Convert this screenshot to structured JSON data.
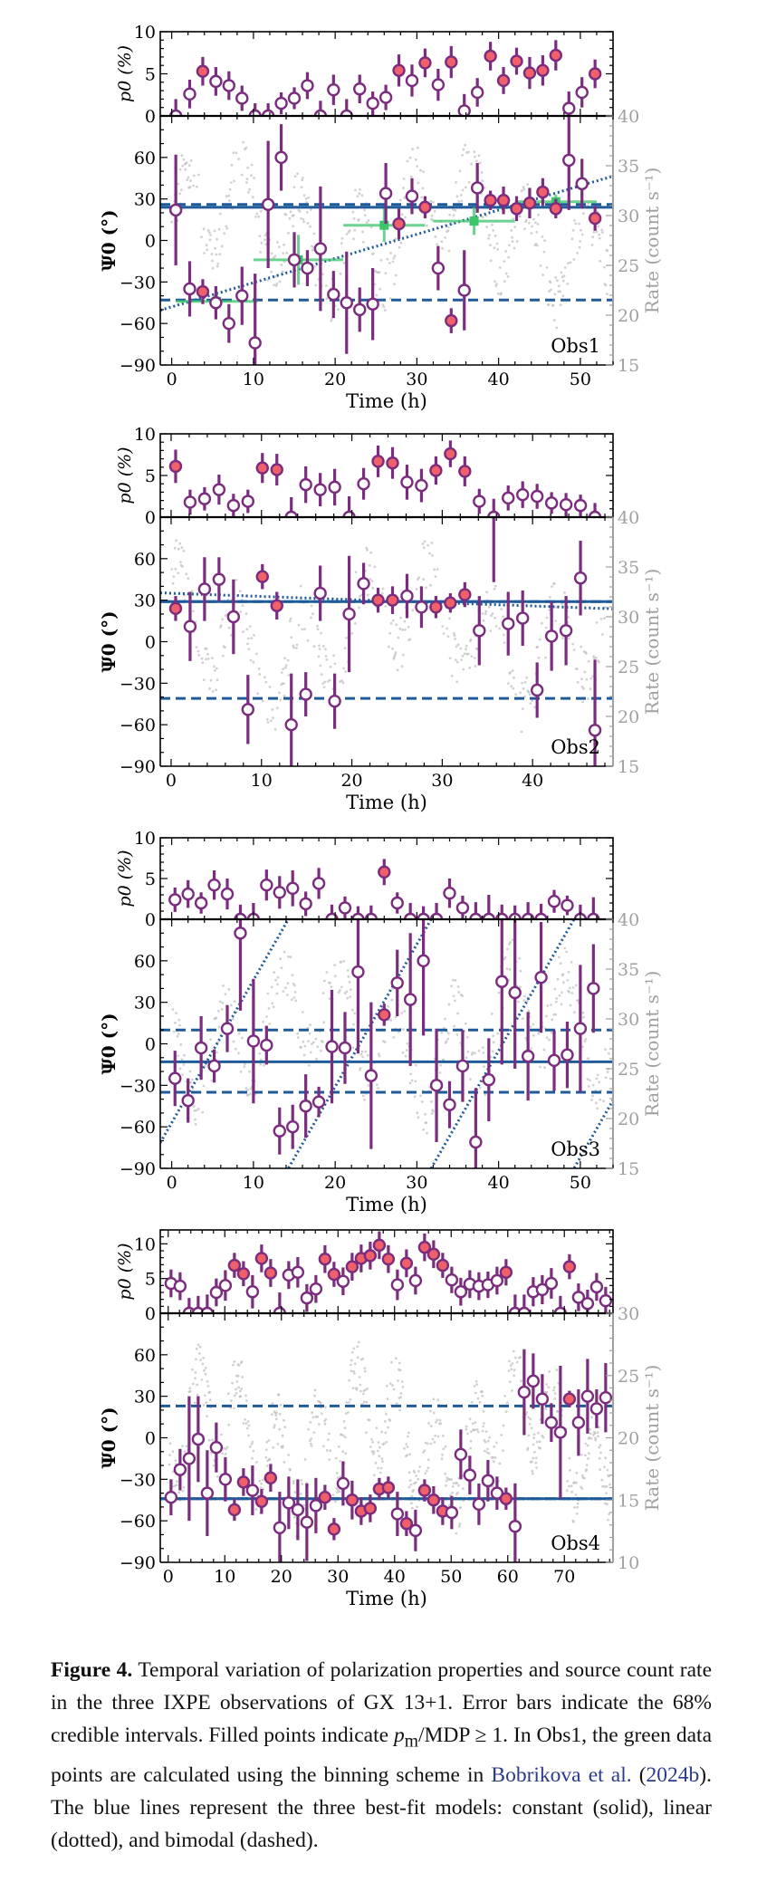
{
  "figure": {
    "label": "Figure 4.",
    "caption_parts": [
      "Temporal variation of polarization properties and source count rate in the three IXPE observations of GX 13+1.  Error bars indicate the 68% credible intervals.  Filled points indicate ",
      "p",
      "m",
      "/MDP ≥ 1.  In Obs1, the green data points are calculated using the binning scheme in ",
      "Bobrikova et al.",
      " (",
      "2024b",
      "). The blue lines represent the three best-fit models: constant (solid), linear (dotted), and bimodal (dashed)."
    ]
  },
  "colors": {
    "errorbar": "#7b2c7e",
    "filled_marker": "#f0606a",
    "open_marker_fill": "#ffffff",
    "model_line": "#1f5b99",
    "binned_green": "#3cc46a",
    "rate_points": "#bdbdbd",
    "right_axis": "#a0a0a0"
  },
  "chart_data": [
    {
      "type": "scatter",
      "panel": "Obs1",
      "xlabel": "Time (h)",
      "p_ylabel": "p0 (%)",
      "psi_ylabel": "Ψ0 (°)",
      "rate_ylabel": "Rate (count s⁻¹)",
      "xlim": [
        -1.4,
        54
      ],
      "xticks": [
        0,
        10,
        20,
        30,
        40,
        50
      ],
      "p_ylim": [
        0,
        10
      ],
      "p_yticks": [
        0,
        5,
        10
      ],
      "psi_ylim": [
        -90,
        90
      ],
      "psi_yticks": [
        -90,
        -60,
        -30,
        0,
        30,
        60
      ],
      "rate_ylim": [
        15,
        40
      ],
      "rate_yticks": [
        15,
        20,
        25,
        30,
        35,
        40
      ],
      "t": [
        0.5,
        2.2,
        3.8,
        5.4,
        7.0,
        8.6,
        10.2,
        11.8,
        13.4,
        15.0,
        16.6,
        18.2,
        19.8,
        21.4,
        23.0,
        24.6,
        26.2,
        27.8,
        29.4,
        31.0,
        32.6,
        34.2,
        35.8,
        37.4,
        39.0,
        40.6,
        42.2,
        43.8,
        45.4,
        47.0,
        48.6,
        50.2,
        51.8
      ],
      "p": [
        0,
        2.6,
        5.3,
        4.1,
        3.6,
        2.1,
        0,
        0,
        1.5,
        2.1,
        3.6,
        0,
        3.1,
        0,
        3.2,
        1.5,
        2.2,
        5.4,
        4.2,
        6.3,
        3.7,
        6.4,
        0.6,
        2.8,
        7.1,
        4.2,
        6.5,
        5.1,
        5.4,
        7.2,
        0.9,
        2.8,
        5.0
      ],
      "p_err": [
        2.0,
        1.7,
        1.7,
        1.7,
        1.7,
        1.5,
        1.5,
        1.5,
        1.3,
        1.3,
        1.6,
        1.8,
        1.8,
        2.0,
        1.7,
        1.4,
        1.5,
        1.9,
        1.9,
        1.7,
        1.9,
        1.9,
        2.0,
        1.7,
        1.7,
        1.6,
        1.6,
        1.9,
        1.8,
        1.8,
        2.0,
        1.8,
        1.7
      ],
      "psi": [
        22,
        -35,
        -37,
        -45,
        -60,
        -40,
        -74,
        26,
        60,
        -14,
        -20,
        -6,
        -39,
        -45,
        -50,
        -46,
        34,
        12,
        32,
        24,
        -20,
        -58,
        -36,
        38,
        29,
        29,
        23,
        27,
        35,
        23,
        58,
        41,
        16
      ],
      "psi_err": [
        40,
        20,
        9,
        12,
        14,
        21,
        50,
        46,
        24,
        20,
        13,
        45,
        17,
        37,
        16,
        26,
        22,
        11,
        13,
        8,
        16,
        9,
        29,
        18,
        7,
        10,
        9,
        11,
        10,
        7,
        36,
        18,
        9
      ],
      "filled": [
        false,
        false,
        true,
        false,
        false,
        false,
        false,
        false,
        false,
        false,
        false,
        false,
        false,
        false,
        false,
        false,
        false,
        true,
        false,
        true,
        false,
        true,
        false,
        false,
        true,
        true,
        true,
        true,
        true,
        true,
        false,
        false,
        true
      ],
      "models": {
        "constant": [
          24
        ],
        "bimodal": [
          26,
          -43
        ],
        "linear": [
          -48,
          1.75
        ]
      },
      "binned": {
        "t": [
          5.5,
          15.5,
          26,
          37,
          47
        ],
        "t_halfwidth": [
          5,
          5.5,
          5,
          5,
          5
        ],
        "psi": [
          -44,
          -14,
          11,
          14,
          28
        ],
        "psi_err": [
          6,
          18,
          12,
          10,
          5
        ]
      },
      "label": "Obs1"
    },
    {
      "type": "scatter",
      "panel": "Obs2",
      "xlabel": "Time (h)",
      "p_ylabel": "p0 (%)",
      "psi_ylabel": "Ψ0 (°)",
      "rate_ylabel": "Rate (count s⁻¹)",
      "xlim": [
        -1.2,
        48.9
      ],
      "xticks": [
        0,
        10,
        20,
        30,
        40
      ],
      "p_ylim": [
        0,
        10
      ],
      "p_yticks": [
        0,
        5,
        10
      ],
      "psi_ylim": [
        -90,
        90
      ],
      "psi_yticks": [
        -90,
        -60,
        -30,
        0,
        30,
        60
      ],
      "rate_ylim": [
        15,
        40
      ],
      "rate_yticks": [
        15,
        20,
        25,
        30,
        35,
        40
      ],
      "t": [
        0.5,
        2.1,
        3.7,
        5.3,
        6.9,
        8.5,
        10.1,
        11.7,
        13.3,
        14.9,
        16.5,
        18.1,
        19.7,
        21.3,
        22.9,
        24.5,
        26.1,
        27.7,
        29.3,
        30.9,
        32.5,
        34.1,
        35.7,
        37.3,
        38.9,
        40.5,
        42.1,
        43.7,
        45.3,
        46.9
      ],
      "p": [
        6.1,
        1.8,
        2.2,
        3.3,
        1.4,
        1.9,
        5.9,
        5.7,
        0,
        3.9,
        3.3,
        3.6,
        0,
        4.0,
        6.7,
        6.5,
        4.2,
        3.8,
        5.6,
        7.6,
        5.5,
        1.9,
        0,
        2.3,
        2.7,
        2.5,
        1.7,
        1.5,
        1.4,
        0
      ],
      "p_err": [
        2.0,
        1.5,
        1.4,
        1.8,
        1.4,
        1.4,
        1.8,
        1.9,
        2.4,
        2.2,
        2.0,
        2.2,
        2.5,
        1.9,
        1.9,
        1.9,
        2.1,
        2.0,
        1.7,
        1.6,
        1.8,
        1.5,
        2.2,
        1.5,
        1.6,
        1.5,
        1.3,
        1.4,
        1.3,
        1.7
      ],
      "psi": [
        24,
        11,
        38,
        45,
        18,
        -49,
        47,
        26,
        -60,
        -38,
        35,
        -43,
        20,
        42,
        30,
        30,
        33,
        25,
        25,
        28,
        34,
        8,
        95,
        13,
        17,
        -35,
        4,
        8,
        46,
        -64
      ],
      "psi_err": [
        9,
        25,
        23,
        16,
        27,
        25,
        9,
        10,
        37,
        16,
        20,
        20,
        42,
        15,
        9,
        10,
        16,
        15,
        8,
        7,
        9,
        25,
        52,
        23,
        20,
        20,
        25,
        25,
        27,
        51
      ],
      "filled": [
        true,
        false,
        false,
        false,
        false,
        false,
        true,
        true,
        false,
        false,
        false,
        false,
        false,
        false,
        true,
        true,
        false,
        false,
        true,
        true,
        true,
        false,
        false,
        false,
        false,
        false,
        false,
        false,
        false,
        false
      ],
      "models": {
        "constant": [
          29
        ],
        "bimodal": [
          29,
          -41
        ],
        "linear": [
          35,
          -0.23
        ]
      },
      "label": "Obs2"
    },
    {
      "type": "scatter",
      "panel": "Obs3",
      "xlabel": "Time (h)",
      "p_ylabel": "p0 (%)",
      "psi_ylabel": "Ψ0 (°)",
      "rate_ylabel": "Rate (count s⁻¹)",
      "xlim": [
        -1.4,
        54
      ],
      "xticks": [
        0,
        10,
        20,
        30,
        40,
        50
      ],
      "p_ylim": [
        0,
        10
      ],
      "p_yticks": [
        0,
        5,
        10
      ],
      "psi_ylim": [
        -90,
        90
      ],
      "psi_yticks": [
        -90,
        -60,
        -30,
        0,
        30,
        60
      ],
      "rate_ylim": [
        15,
        40
      ],
      "rate_yticks": [
        15,
        20,
        25,
        30,
        35,
        40
      ],
      "t": [
        0.4,
        2.0,
        3.6,
        5.2,
        6.8,
        8.4,
        10.0,
        11.6,
        13.2,
        14.8,
        16.4,
        18.0,
        19.6,
        21.2,
        22.8,
        24.4,
        26.0,
        27.6,
        29.2,
        30.8,
        32.4,
        34.0,
        35.6,
        37.2,
        38.8,
        40.4,
        42.0,
        43.6,
        45.2,
        46.8,
        48.4,
        50.0,
        51.6
      ],
      "p": [
        2.4,
        3.1,
        2.0,
        4.2,
        3.1,
        0,
        0,
        4.2,
        3.3,
        3.8,
        1.9,
        4.4,
        0,
        1.4,
        0,
        0,
        5.8,
        2.0,
        0,
        0,
        0,
        3.2,
        1.4,
        0,
        0,
        0,
        0,
        0,
        0,
        2.2,
        1.7,
        0,
        0
      ],
      "p_err": [
        1.5,
        1.7,
        1.3,
        1.8,
        1.9,
        1.8,
        2.0,
        1.9,
        2.0,
        2.2,
        1.5,
        1.9,
        1.8,
        1.4,
        1.6,
        1.7,
        1.6,
        1.3,
        2.0,
        1.6,
        2.0,
        1.8,
        1.5,
        2.1,
        3.0,
        1.8,
        1.7,
        2.1,
        1.9,
        1.4,
        1.2,
        1.8,
        2.7
      ],
      "psi": [
        -25,
        -41,
        -3,
        -16,
        11,
        80,
        2,
        -1,
        -63,
        -60,
        -45,
        -42,
        -2,
        -3,
        52,
        -23,
        21,
        44,
        32,
        60,
        -30,
        -44,
        -16,
        -71,
        -26,
        45,
        37,
        -9,
        48,
        -12,
        -8,
        11,
        40
      ],
      "psi_err": [
        20,
        16,
        23,
        12,
        17,
        56,
        45,
        14,
        17,
        16,
        23,
        11,
        41,
        26,
        59,
        53,
        8,
        24,
        48,
        54,
        41,
        17,
        26,
        39,
        30,
        60,
        55,
        32,
        40,
        22,
        24,
        46,
        32
      ],
      "filled": [
        false,
        false,
        false,
        false,
        false,
        false,
        false,
        false,
        false,
        false,
        false,
        false,
        false,
        false,
        false,
        false,
        true,
        false,
        false,
        false,
        false,
        false,
        false,
        false,
        false,
        false,
        false,
        false,
        false,
        false,
        false,
        false,
        false
      ],
      "models": {
        "constant": [
          -13
        ],
        "bimodal": [
          10,
          -35
        ],
        "linear": [
          -57,
          10.3
        ]
      },
      "label": "Obs3"
    },
    {
      "type": "scatter",
      "panel": "Obs4",
      "xlabel": "Time (h)",
      "p_ylabel": "p0 (%)",
      "psi_ylabel": "Ψ0 (°)",
      "rate_ylabel": "Rate (count s⁻¹)",
      "xlim": [
        -1.4,
        78.6
      ],
      "xticks": [
        0,
        10,
        20,
        30,
        40,
        50,
        60,
        70
      ],
      "p_ylim": [
        0,
        12
      ],
      "p_yticks": [
        0,
        5,
        10
      ],
      "psi_ylim": [
        -90,
        90
      ],
      "psi_yticks": [
        -90,
        -60,
        -30,
        0,
        30,
        60
      ],
      "rate_ylim": [
        10,
        30
      ],
      "rate_yticks": [
        10,
        15,
        20,
        25,
        30
      ],
      "t": [
        0.5,
        2.1,
        3.7,
        5.3,
        6.9,
        8.5,
        10.1,
        11.7,
        13.3,
        14.9,
        16.5,
        18.1,
        19.7,
        21.3,
        22.9,
        24.5,
        26.1,
        27.7,
        29.3,
        30.9,
        32.5,
        34.1,
        35.7,
        37.3,
        38.9,
        40.5,
        42.1,
        43.7,
        45.3,
        46.9,
        48.5,
        50.1,
        51.7,
        53.3,
        54.9,
        56.5,
        58.1,
        59.7,
        61.3,
        62.9,
        64.5,
        66.1,
        67.7,
        69.3,
        70.9,
        72.5,
        74.1,
        75.7,
        77.3
      ],
      "p": [
        4.3,
        3.9,
        0,
        0,
        0,
        3.0,
        4.0,
        6.9,
        5.7,
        3.1,
        7.9,
        5.8,
        0,
        5.5,
        5.9,
        2.2,
        3.5,
        7.8,
        5.6,
        4.6,
        6.7,
        7.9,
        8.3,
        9.8,
        7.8,
        4.1,
        7.2,
        4.7,
        9.5,
        8.5,
        6.9,
        4.8,
        3.1,
        4.2,
        3.9,
        4.1,
        4.7,
        5.9,
        0,
        0,
        3.1,
        3.4,
        4.3,
        0,
        6.7,
        2.3,
        1.4,
        3.8,
        1.8
      ],
      "p_err": [
        2.0,
        2.0,
        2.2,
        2.5,
        2.7,
        2.0,
        2.2,
        1.8,
        1.8,
        2.4,
        2.0,
        2.0,
        3.0,
        2.0,
        2.2,
        2.0,
        2.0,
        2.0,
        1.8,
        2.0,
        2.0,
        2.0,
        2.0,
        2.0,
        2.0,
        2.2,
        2.0,
        2.0,
        2.0,
        2.0,
        1.8,
        1.9,
        2.0,
        2.0,
        2.0,
        1.9,
        2.0,
        1.9,
        2.7,
        2.7,
        2.1,
        2.1,
        2.2,
        2.5,
        1.8,
        2.0,
        2.0,
        2.0,
        2.0
      ],
      "psi": [
        -43,
        -23,
        -15,
        -1,
        -40,
        -7,
        -30,
        -52,
        -32,
        -38,
        -46,
        -29,
        -65,
        -47,
        -52,
        -61,
        -49,
        -43,
        -66,
        -33,
        -45,
        -53,
        -51,
        -37,
        -36,
        -55,
        -62,
        -67,
        -38,
        -45,
        -53,
        -54,
        -12,
        -27,
        -48,
        -31,
        -40,
        -44,
        -64,
        33,
        41,
        28,
        11,
        4,
        28,
        11,
        30,
        21,
        29
      ],
      "psi_err": [
        13,
        15,
        45,
        31,
        31,
        18,
        16,
        8,
        10,
        18,
        9,
        10,
        26,
        19,
        22,
        28,
        20,
        9,
        8,
        16,
        14,
        10,
        10,
        8,
        8,
        16,
        9,
        15,
        8,
        10,
        10,
        12,
        18,
        14,
        15,
        15,
        12,
        8,
        31,
        31,
        20,
        18,
        14,
        48,
        6,
        24,
        27,
        14,
        25
      ],
      "filled": [
        false,
        false,
        false,
        false,
        false,
        false,
        false,
        true,
        true,
        false,
        true,
        true,
        false,
        false,
        false,
        false,
        false,
        true,
        true,
        false,
        true,
        true,
        true,
        true,
        true,
        false,
        true,
        false,
        true,
        true,
        true,
        false,
        false,
        false,
        false,
        false,
        false,
        true,
        false,
        false,
        false,
        false,
        false,
        false,
        true,
        false,
        false,
        false,
        false
      ],
      "models": {
        "constant": [
          -44
        ],
        "bimodal": [
          23,
          -44
        ],
        "linear": [
          -44,
          0
        ]
      },
      "label": "Obs4"
    }
  ]
}
